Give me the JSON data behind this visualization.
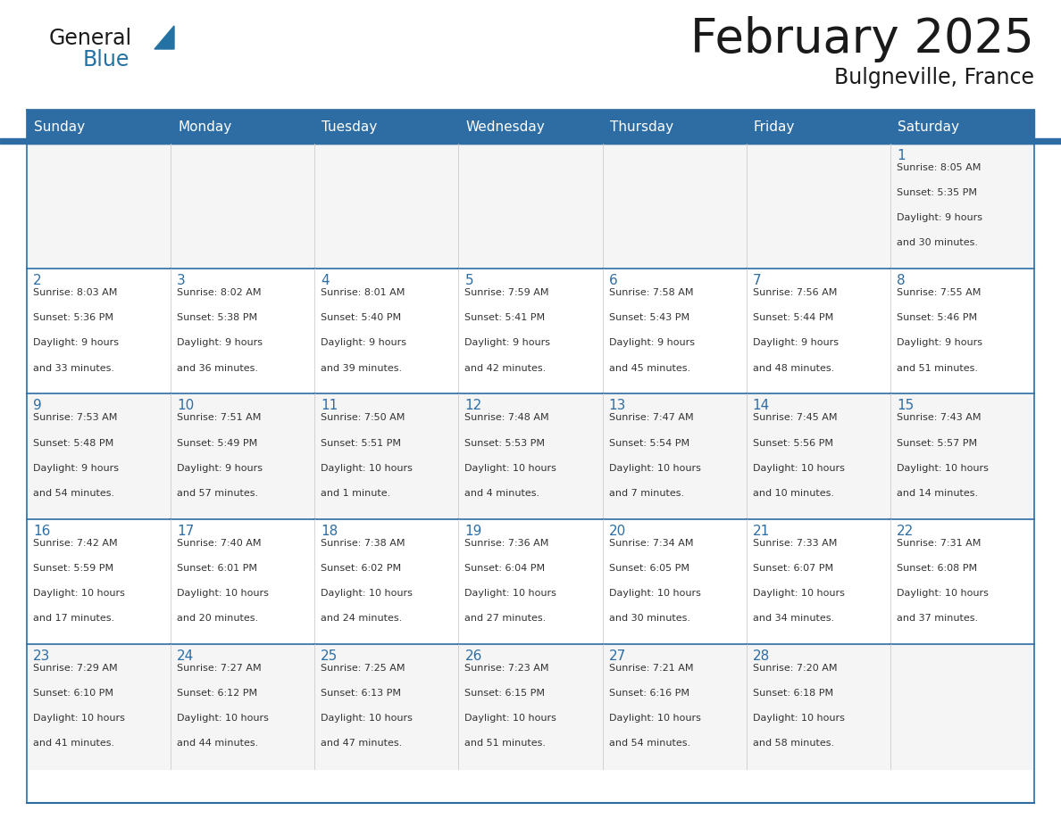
{
  "title": "February 2025",
  "subtitle": "Bulgneville, France",
  "days_of_week": [
    "Sunday",
    "Monday",
    "Tuesday",
    "Wednesday",
    "Thursday",
    "Friday",
    "Saturday"
  ],
  "header_bg": "#2E6DA4",
  "header_text_color": "#FFFFFF",
  "cell_bg": "#FFFFFF",
  "cell_bg_alt": "#F5F5F5",
  "border_color": "#2E6DA4",
  "row_border_color": "#2E6DA4",
  "text_color_dark": "#333333",
  "text_color_blue": "#2E6DA4",
  "calendar_data": [
    [
      null,
      null,
      null,
      null,
      null,
      null,
      {
        "day": 1,
        "sunrise": "8:05 AM",
        "sunset": "5:35 PM",
        "daylight": "9 hours",
        "daylight2": "and 30 minutes."
      }
    ],
    [
      {
        "day": 2,
        "sunrise": "8:03 AM",
        "sunset": "5:36 PM",
        "daylight": "9 hours",
        "daylight2": "and 33 minutes."
      },
      {
        "day": 3,
        "sunrise": "8:02 AM",
        "sunset": "5:38 PM",
        "daylight": "9 hours",
        "daylight2": "and 36 minutes."
      },
      {
        "day": 4,
        "sunrise": "8:01 AM",
        "sunset": "5:40 PM",
        "daylight": "9 hours",
        "daylight2": "and 39 minutes."
      },
      {
        "day": 5,
        "sunrise": "7:59 AM",
        "sunset": "5:41 PM",
        "daylight": "9 hours",
        "daylight2": "and 42 minutes."
      },
      {
        "day": 6,
        "sunrise": "7:58 AM",
        "sunset": "5:43 PM",
        "daylight": "9 hours",
        "daylight2": "and 45 minutes."
      },
      {
        "day": 7,
        "sunrise": "7:56 AM",
        "sunset": "5:44 PM",
        "daylight": "9 hours",
        "daylight2": "and 48 minutes."
      },
      {
        "day": 8,
        "sunrise": "7:55 AM",
        "sunset": "5:46 PM",
        "daylight": "9 hours",
        "daylight2": "and 51 minutes."
      }
    ],
    [
      {
        "day": 9,
        "sunrise": "7:53 AM",
        "sunset": "5:48 PM",
        "daylight": "9 hours",
        "daylight2": "and 54 minutes."
      },
      {
        "day": 10,
        "sunrise": "7:51 AM",
        "sunset": "5:49 PM",
        "daylight": "9 hours",
        "daylight2": "and 57 minutes."
      },
      {
        "day": 11,
        "sunrise": "7:50 AM",
        "sunset": "5:51 PM",
        "daylight": "10 hours",
        "daylight2": "and 1 minute."
      },
      {
        "day": 12,
        "sunrise": "7:48 AM",
        "sunset": "5:53 PM",
        "daylight": "10 hours",
        "daylight2": "and 4 minutes."
      },
      {
        "day": 13,
        "sunrise": "7:47 AM",
        "sunset": "5:54 PM",
        "daylight": "10 hours",
        "daylight2": "and 7 minutes."
      },
      {
        "day": 14,
        "sunrise": "7:45 AM",
        "sunset": "5:56 PM",
        "daylight": "10 hours",
        "daylight2": "and 10 minutes."
      },
      {
        "day": 15,
        "sunrise": "7:43 AM",
        "sunset": "5:57 PM",
        "daylight": "10 hours",
        "daylight2": "and 14 minutes."
      }
    ],
    [
      {
        "day": 16,
        "sunrise": "7:42 AM",
        "sunset": "5:59 PM",
        "daylight": "10 hours",
        "daylight2": "and 17 minutes."
      },
      {
        "day": 17,
        "sunrise": "7:40 AM",
        "sunset": "6:01 PM",
        "daylight": "10 hours",
        "daylight2": "and 20 minutes."
      },
      {
        "day": 18,
        "sunrise": "7:38 AM",
        "sunset": "6:02 PM",
        "daylight": "10 hours",
        "daylight2": "and 24 minutes."
      },
      {
        "day": 19,
        "sunrise": "7:36 AM",
        "sunset": "6:04 PM",
        "daylight": "10 hours",
        "daylight2": "and 27 minutes."
      },
      {
        "day": 20,
        "sunrise": "7:34 AM",
        "sunset": "6:05 PM",
        "daylight": "10 hours",
        "daylight2": "and 30 minutes."
      },
      {
        "day": 21,
        "sunrise": "7:33 AM",
        "sunset": "6:07 PM",
        "daylight": "10 hours",
        "daylight2": "and 34 minutes."
      },
      {
        "day": 22,
        "sunrise": "7:31 AM",
        "sunset": "6:08 PM",
        "daylight": "10 hours",
        "daylight2": "and 37 minutes."
      }
    ],
    [
      {
        "day": 23,
        "sunrise": "7:29 AM",
        "sunset": "6:10 PM",
        "daylight": "10 hours",
        "daylight2": "and 41 minutes."
      },
      {
        "day": 24,
        "sunrise": "7:27 AM",
        "sunset": "6:12 PM",
        "daylight": "10 hours",
        "daylight2": "and 44 minutes."
      },
      {
        "day": 25,
        "sunrise": "7:25 AM",
        "sunset": "6:13 PM",
        "daylight": "10 hours",
        "daylight2": "and 47 minutes."
      },
      {
        "day": 26,
        "sunrise": "7:23 AM",
        "sunset": "6:15 PM",
        "daylight": "10 hours",
        "daylight2": "and 51 minutes."
      },
      {
        "day": 27,
        "sunrise": "7:21 AM",
        "sunset": "6:16 PM",
        "daylight": "10 hours",
        "daylight2": "and 54 minutes."
      },
      {
        "day": 28,
        "sunrise": "7:20 AM",
        "sunset": "6:18 PM",
        "daylight": "10 hours",
        "daylight2": "and 58 minutes."
      },
      null
    ]
  ],
  "num_rows": 5,
  "num_cols": 7
}
